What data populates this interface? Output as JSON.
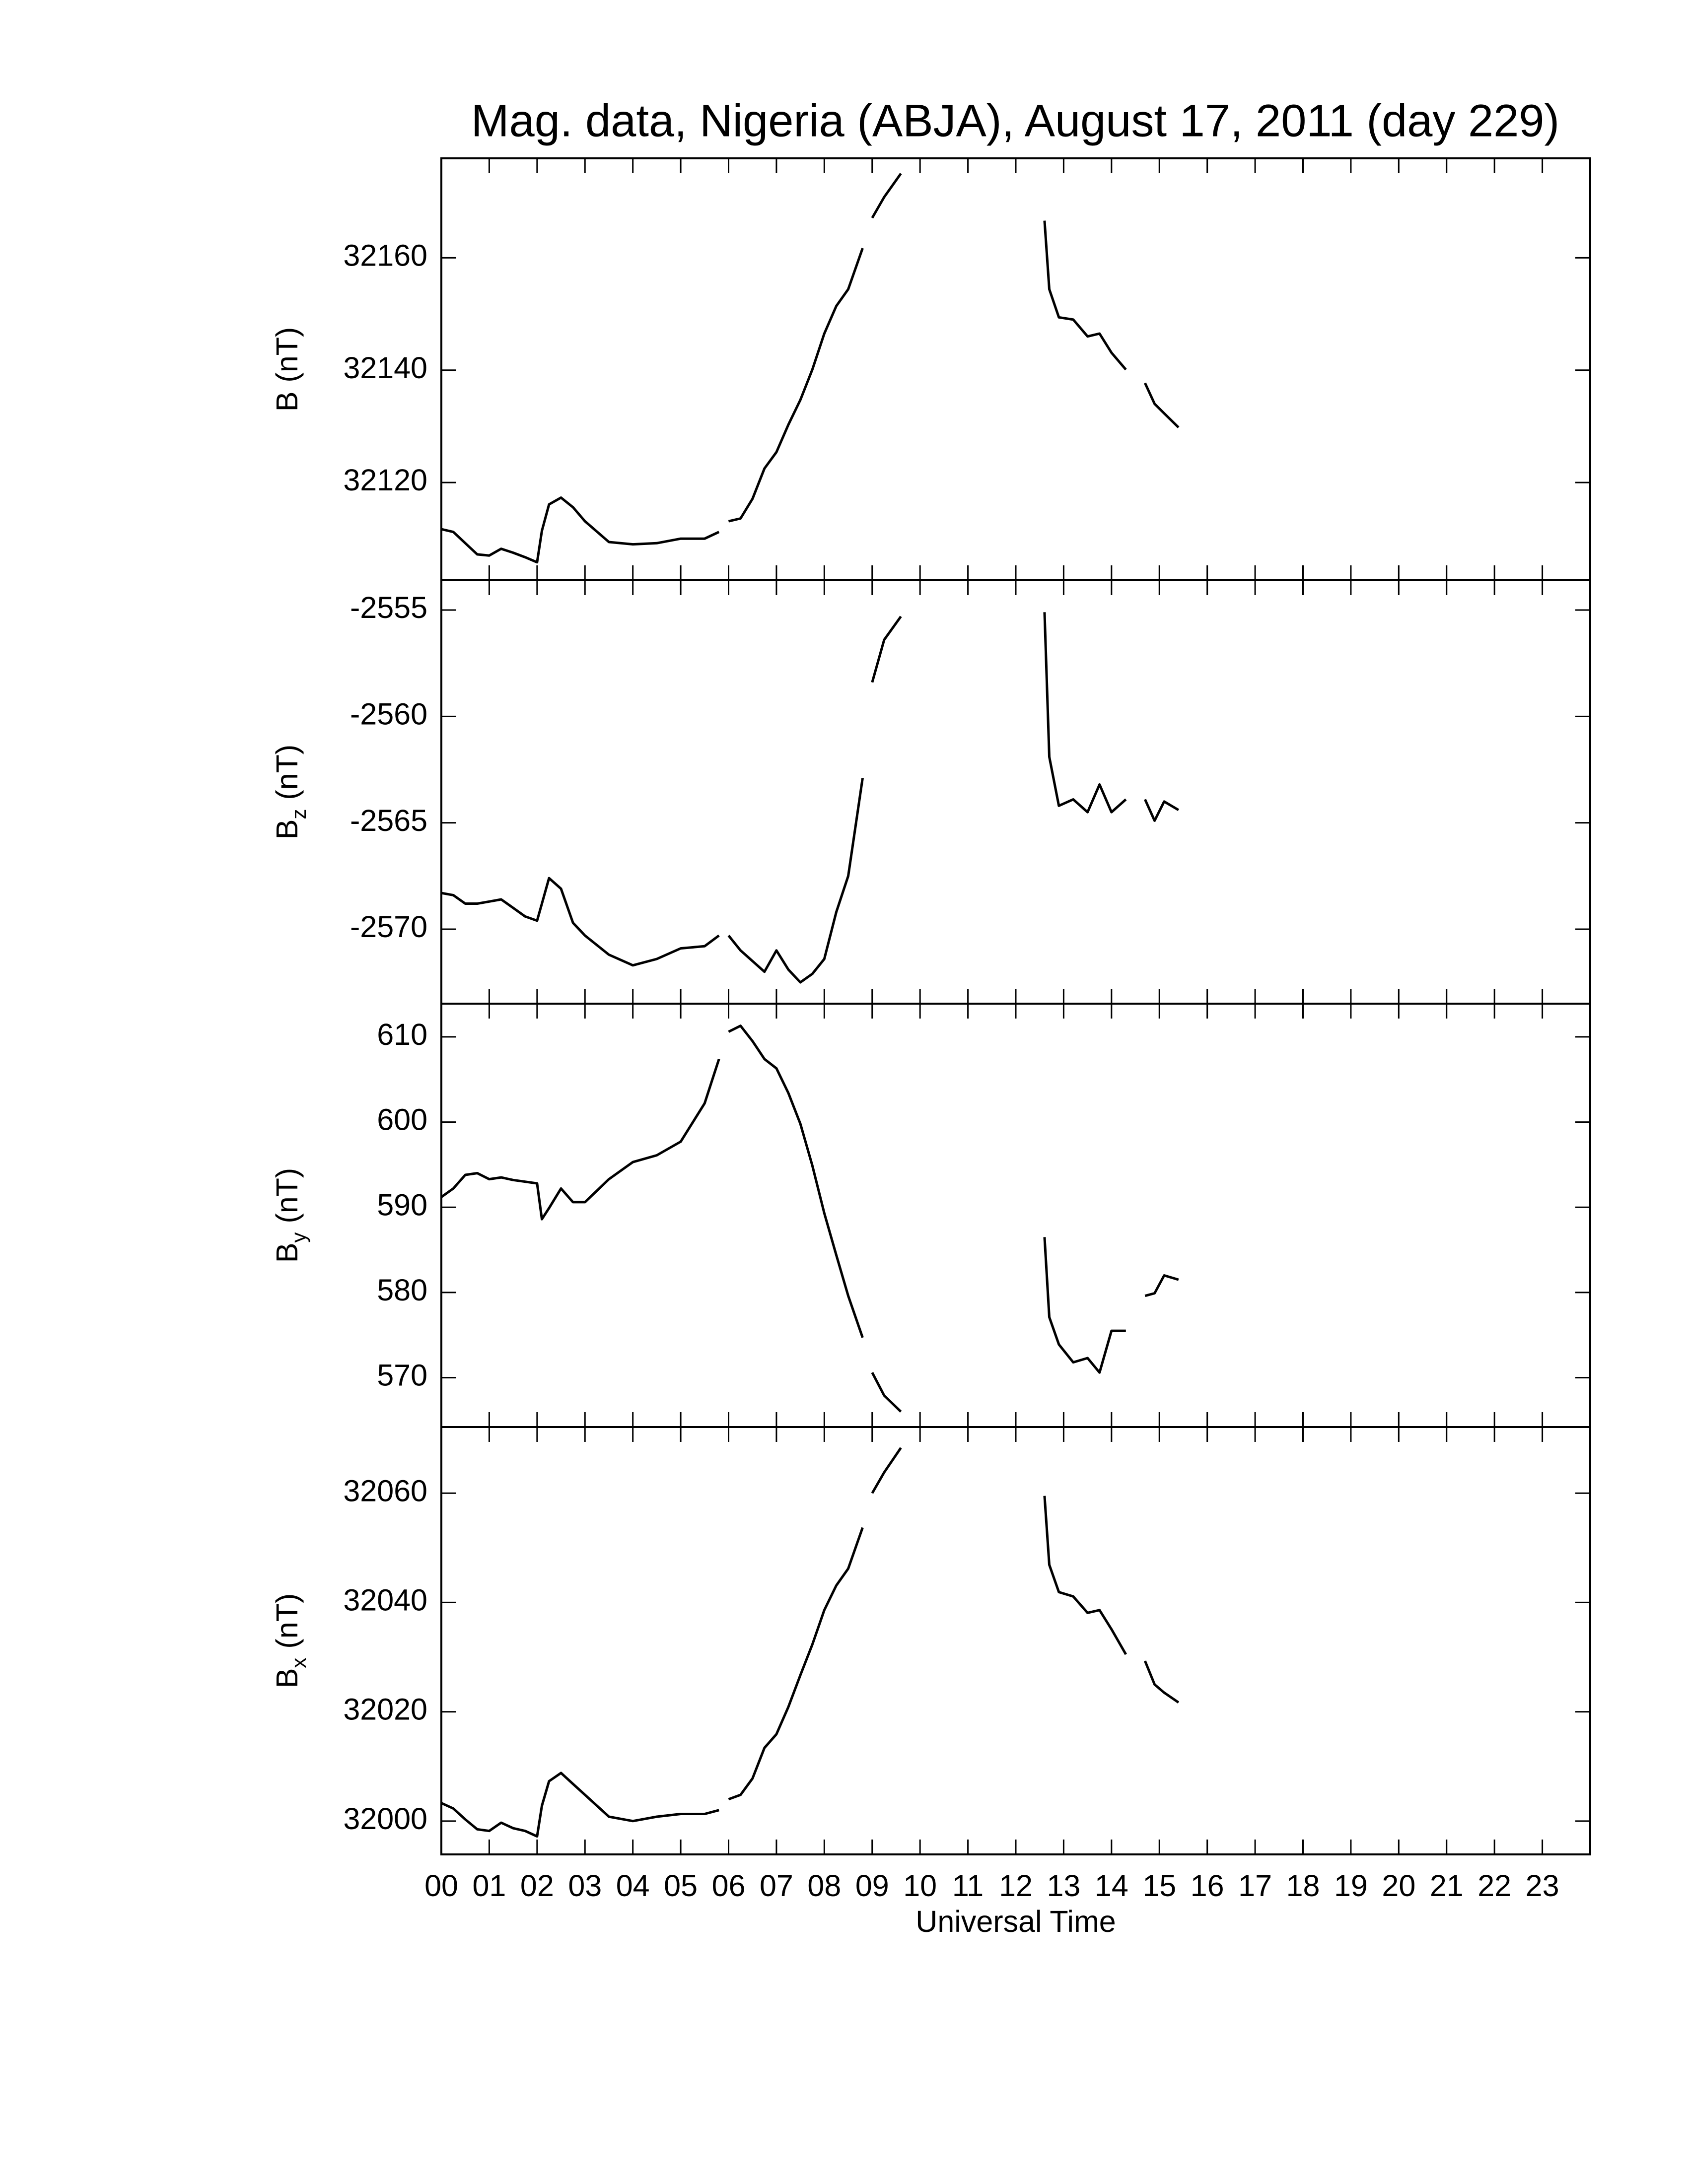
{
  "chart_data": [
    {
      "type": "line",
      "title": "Mag. data, Nigeria (ABJA), August 17, 2011 (day 229)",
      "ylabel": {
        "text": "B",
        "unit": "(nT)"
      },
      "xlim": [
        0,
        24
      ],
      "ylim": [
        32102.6,
        32177.7
      ],
      "yticks": [
        32120,
        32140,
        32160
      ],
      "color": "#000000",
      "x": [
        0,
        0.25,
        0.5,
        0.75,
        1,
        1.25,
        1.5,
        1.75,
        2,
        2.1,
        2.25,
        2.5,
        2.75,
        3,
        3.5,
        4,
        4.5,
        5,
        5.5,
        5.8,
        5.9,
        6.0,
        6.25,
        6.5,
        6.75,
        7,
        7.25,
        7.5,
        7.75,
        8,
        8.25,
        8.5,
        8.8,
        8.9,
        9.0,
        9.25,
        9.6,
        11,
        12.6,
        12.7,
        12.9,
        13.2,
        13.5,
        13.75,
        14,
        14.3,
        14.5,
        14.7,
        14.9,
        15.1,
        15.4
      ],
      "values": [
        32111.7,
        32111.2,
        32109.2,
        32107.2,
        32107,
        32108.2,
        32107.5,
        32106.7,
        32105.8,
        32111.4,
        32116.1,
        32117.3,
        32115.6,
        32113.1,
        32109.4,
        32109,
        32109.2,
        32110,
        32110,
        32111.2,
        null,
        32113.1,
        32113.6,
        32117.1,
        32122.5,
        32125.4,
        32130.3,
        32134.7,
        32140.1,
        32146.5,
        32151.4,
        32154.4,
        32161.7,
        null,
        32167.1,
        32170.8,
        32175,
        null,
        32166.6,
        32154.4,
        32149.4,
        32149,
        32146,
        32146.5,
        32143.1,
        32140.1,
        null,
        32137.7,
        32134,
        32132.3,
        32129.8
      ]
    },
    {
      "type": "line",
      "ylabel": {
        "text": "B",
        "sub": "z",
        "unit": "(nT)"
      },
      "xlim": [
        0,
        24
      ],
      "ylim": [
        -2573.5,
        -2553.6
      ],
      "yticks": [
        -2570,
        -2565,
        -2560,
        -2555
      ],
      "color": "#000000",
      "x": [
        0,
        0.25,
        0.5,
        0.75,
        1,
        1.25,
        1.5,
        1.75,
        2,
        2.1,
        2.25,
        2.5,
        2.75,
        3,
        3.5,
        4,
        4.5,
        5,
        5.5,
        5.8,
        5.9,
        6.0,
        6.25,
        6.5,
        6.75,
        7,
        7.25,
        7.5,
        7.75,
        8,
        8.25,
        8.5,
        8.8,
        8.9,
        9.0,
        9.25,
        9.6,
        11,
        12.6,
        12.7,
        12.9,
        13.2,
        13.5,
        13.75,
        14,
        14.3,
        14.5,
        14.7,
        14.9,
        15.1,
        15.4
      ],
      "values": [
        -2568.3,
        -2568.4,
        -2568.8,
        -2568.8,
        -2568.7,
        -2568.6,
        -2569,
        -2569.4,
        -2569.6,
        -2568.8,
        -2567.6,
        -2568.1,
        -2569.7,
        -2570.3,
        -2571.2,
        -2571.7,
        -2571.4,
        -2570.9,
        -2570.8,
        -2570.3,
        null,
        -2570.3,
        -2571,
        -2571.5,
        -2572,
        -2571,
        -2571.9,
        -2572.5,
        -2572.1,
        -2571.4,
        -2569.2,
        -2567.5,
        -2562.9,
        null,
        -2558.4,
        -2556.4,
        -2555.3,
        null,
        -2555.1,
        -2561.9,
        -2564.2,
        -2563.9,
        -2564.5,
        -2563.2,
        -2564.5,
        -2563.9,
        null,
        -2563.9,
        -2564.9,
        -2564,
        -2564.4
      ]
    },
    {
      "type": "line",
      "ylabel": {
        "text": "B",
        "sub": "y",
        "unit": "(nT)"
      },
      "xlim": [
        0,
        24
      ],
      "ylim": [
        564.2,
        613.9
      ],
      "yticks": [
        570,
        580,
        590,
        600,
        610
      ],
      "color": "#000000",
      "x": [
        0,
        0.25,
        0.5,
        0.75,
        1,
        1.25,
        1.5,
        1.75,
        2,
        2.1,
        2.25,
        2.5,
        2.75,
        3,
        3.5,
        4,
        4.5,
        5,
        5.5,
        5.8,
        5.9,
        6.0,
        6.25,
        6.5,
        6.75,
        7,
        7.25,
        7.5,
        7.75,
        8,
        8.25,
        8.5,
        8.8,
        8.9,
        9.0,
        9.25,
        9.6,
        11,
        12.6,
        12.7,
        12.9,
        13.2,
        13.5,
        13.75,
        14,
        14.3,
        14.5,
        14.7,
        14.9,
        15.1,
        15.4
      ],
      "values": [
        591.2,
        592.2,
        593.8,
        594,
        593.3,
        593.5,
        593.2,
        593,
        592.8,
        588.6,
        589.9,
        592.2,
        590.6,
        590.6,
        593.3,
        595.3,
        596.1,
        597.7,
        602.2,
        607.4,
        null,
        610.6,
        611.3,
        609.5,
        607.4,
        606.3,
        603.4,
        599.8,
        594.9,
        589.3,
        584.4,
        579.6,
        574.7,
        null,
        570.6,
        567.9,
        566,
        null,
        586.5,
        577.1,
        573.9,
        571.8,
        572.3,
        570.6,
        575.5,
        575.5,
        null,
        579.6,
        579.9,
        582,
        581.5
      ]
    },
    {
      "type": "line",
      "ylabel": {
        "text": "B",
        "sub": "x",
        "unit": "(nT)"
      },
      "xlabel": "Universal Time",
      "xlim": [
        0,
        24
      ],
      "ylim": [
        31993.9,
        32072.1
      ],
      "yticks": [
        32000,
        32020,
        32040,
        32060
      ],
      "color": "#000000",
      "xticks": [
        {
          "value": 0,
          "label": "00"
        },
        {
          "value": 1,
          "label": "01"
        },
        {
          "value": 2,
          "label": "02"
        },
        {
          "value": 3,
          "label": "03"
        },
        {
          "value": 4,
          "label": "04"
        },
        {
          "value": 5,
          "label": "05"
        },
        {
          "value": 6,
          "label": "06"
        },
        {
          "value": 7,
          "label": "07"
        },
        {
          "value": 8,
          "label": "08"
        },
        {
          "value": 9,
          "label": "09"
        },
        10,
        11,
        12,
        13,
        14,
        15,
        16,
        17,
        18,
        19,
        20,
        21,
        22,
        23
      ],
      "x": [
        0,
        0.25,
        0.5,
        0.75,
        1,
        1.25,
        1.5,
        1.75,
        2,
        2.1,
        2.25,
        2.5,
        2.75,
        3,
        3.5,
        4,
        4.5,
        5,
        5.5,
        5.8,
        5.9,
        6.0,
        6.25,
        6.5,
        6.75,
        7,
        7.25,
        7.5,
        7.75,
        8,
        8.25,
        8.5,
        8.8,
        8.9,
        9.0,
        9.25,
        9.6,
        11,
        12.6,
        12.7,
        12.9,
        13.2,
        13.5,
        13.75,
        14,
        14.3,
        14.5,
        14.7,
        14.9,
        15.1,
        15.4
      ],
      "values": [
        32003.3,
        32002.3,
        32000.3,
        31998.5,
        31998.2,
        31999.7,
        31998.7,
        31998.2,
        31997.2,
        32002.8,
        32007.3,
        32008.8,
        32006.8,
        32004.8,
        32000.8,
        32000,
        32000.8,
        32001.3,
        32001.3,
        32002,
        null,
        32004,
        32004.8,
        32007.8,
        32013.4,
        32015.9,
        32020.9,
        32026.7,
        32032.3,
        32038.6,
        32043.1,
        32046.2,
        32053.7,
        null,
        32060,
        32063.8,
        32068.3,
        null,
        32059.5,
        32046.9,
        32041.9,
        32041.1,
        32038.1,
        32038.6,
        32035.1,
        32030.5,
        null,
        32029.3,
        32025,
        32023.5,
        32021.7
      ]
    }
  ]
}
